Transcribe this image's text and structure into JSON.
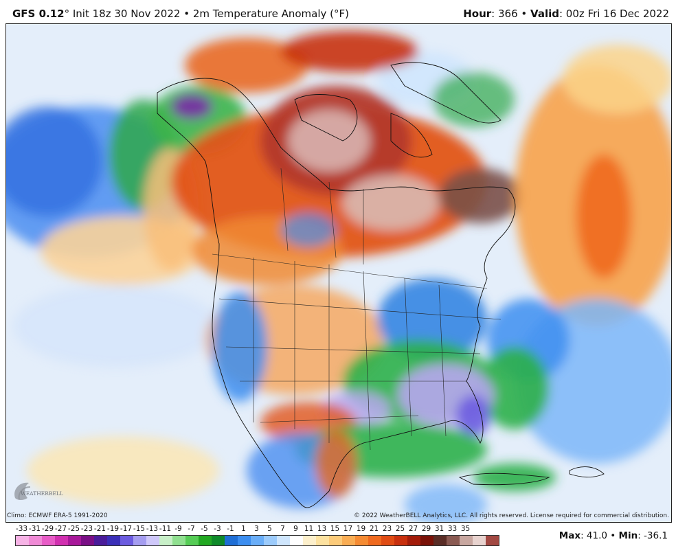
{
  "header": {
    "model": "GFS 0.12",
    "degree_mark": "°",
    "init": "Init 18z 30 Nov 2022",
    "sep": "•",
    "product": "2m Temperature Anomaly (°F)",
    "hour_label": "Hour",
    "hour_value": ": 366",
    "valid_label": "Valid",
    "valid_value": ": 00z Fri 16 Dec 2022"
  },
  "footer": {
    "climo": "Climo: ECMWF ERA-5 1991-2020",
    "copyright": "© 2022 WeatherBELL Analytics, LLC. All rights reserved. License required for commercial distribution."
  },
  "logo": {
    "text": "WEATHERBELL"
  },
  "stats": {
    "max_label": "Max",
    "max_value": ": 41.0",
    "sep": "•",
    "min_label": "Min",
    "min_value": ": -36.1"
  },
  "legend": {
    "ticks": [
      "-33",
      "-31",
      "-29",
      "-27",
      "-25",
      "-23",
      "-21",
      "-19",
      "-17",
      "-15",
      "-13",
      "-11",
      "-9",
      "-7",
      "-5",
      "-3",
      "-1",
      "1",
      "3",
      "5",
      "7",
      "9",
      "11",
      "13",
      "15",
      "17",
      "19",
      "21",
      "23",
      "25",
      "27",
      "29",
      "31",
      "33",
      "35"
    ],
    "colors": [
      "#f7b3e6",
      "#f08ad6",
      "#e85cc7",
      "#d130b0",
      "#a8189a",
      "#7a0f86",
      "#4a1c9a",
      "#3b2fb8",
      "#6c5ce0",
      "#a59df0",
      "#cfc8fa",
      "#c8f0c8",
      "#90e090",
      "#56cc56",
      "#22a822",
      "#0f8a2a",
      "#1f6fd6",
      "#3c8ef0",
      "#6aaef8",
      "#9ccbfb",
      "#cfe6fd",
      "#ffffff",
      "#fdf0cc",
      "#fde2a0",
      "#fccb7a",
      "#f9ad54",
      "#f58b33",
      "#ef6a1f",
      "#e04c14",
      "#c8300e",
      "#a31c0a",
      "#7a1208",
      "#5a2d26",
      "#8a5a52",
      "#c8a7a0",
      "#e8d3cf",
      "#a24842"
    ]
  },
  "map": {
    "region": "North America",
    "color_scale": "temperature-anomaly"
  }
}
